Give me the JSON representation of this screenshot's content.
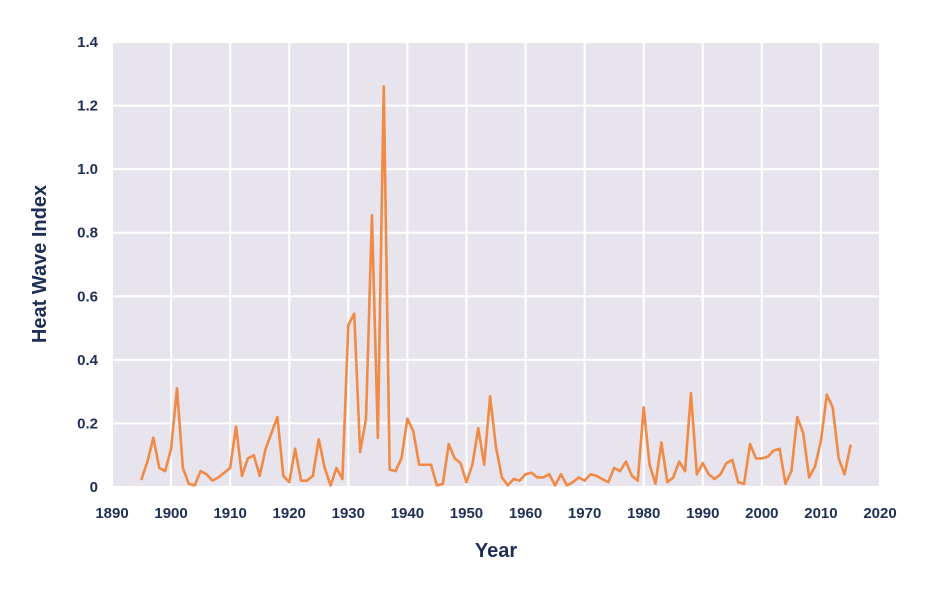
{
  "chart_data": {
    "type": "line",
    "xlabel": "Year",
    "ylabel": "Heat Wave Index",
    "xlim": [
      1890,
      2020
    ],
    "ylim": [
      0,
      1.4
    ],
    "xticks": [
      "1890",
      "1900",
      "1910",
      "1920",
      "1930",
      "1940",
      "1950",
      "1960",
      "1970",
      "1980",
      "1990",
      "2000",
      "2010",
      "2020"
    ],
    "yticks": [
      "0",
      "0.2",
      "0.4",
      "0.6",
      "0.8",
      "1.0",
      "1.2",
      "1.4"
    ],
    "grid": true,
    "colors": {
      "line": "#f08a45",
      "plot_bg": "#e8e4ee",
      "grid": "#ffffff",
      "text": "#1e2f56"
    },
    "series": [
      {
        "x": [
          1895,
          1896,
          1897,
          1898,
          1899,
          1900,
          1901,
          1902,
          1903,
          1904,
          1905,
          1906,
          1907,
          1908,
          1909,
          1910,
          1911,
          1912,
          1913,
          1914,
          1915,
          1916,
          1917,
          1918,
          1919,
          1920,
          1921,
          1922,
          1923,
          1924,
          1925,
          1926,
          1927,
          1928,
          1929,
          1930,
          1931,
          1932,
          1933,
          1934,
          1935,
          1936,
          1937,
          1938,
          1939,
          1940,
          1941,
          1942,
          1943,
          1944,
          1945,
          1946,
          1947,
          1948,
          1949,
          1950,
          1951,
          1952,
          1953,
          1954,
          1955,
          1956,
          1957,
          1958,
          1959,
          1960,
          1961,
          1962,
          1963,
          1964,
          1965,
          1966,
          1967,
          1968,
          1969,
          1970,
          1971,
          1972,
          1973,
          1974,
          1975,
          1976,
          1977,
          1978,
          1979,
          1980,
          1981,
          1982,
          1983,
          1984,
          1985,
          1986,
          1987,
          1988,
          1989,
          1990,
          1991,
          1992,
          1993,
          1994,
          1995,
          1996,
          1997,
          1998,
          1999,
          2000,
          2001,
          2002,
          2003,
          2004,
          2005,
          2006,
          2007,
          2008,
          2009,
          2010,
          2011,
          2012,
          2013,
          2014,
          2015
        ],
        "values": [
          0.025,
          0.08,
          0.155,
          0.06,
          0.05,
          0.12,
          0.31,
          0.06,
          0.01,
          0.005,
          0.05,
          0.04,
          0.02,
          0.03,
          0.045,
          0.06,
          0.19,
          0.035,
          0.09,
          0.1,
          0.035,
          0.12,
          0.17,
          0.22,
          0.035,
          0.015,
          0.12,
          0.02,
          0.02,
          0.035,
          0.15,
          0.06,
          0.005,
          0.06,
          0.025,
          0.51,
          0.545,
          0.11,
          0.215,
          0.855,
          0.155,
          1.26,
          0.055,
          0.05,
          0.09,
          0.215,
          0.175,
          0.07,
          0.07,
          0.07,
          0.005,
          0.01,
          0.135,
          0.09,
          0.075,
          0.015,
          0.07,
          0.185,
          0.07,
          0.285,
          0.125,
          0.03,
          0.005,
          0.025,
          0.02,
          0.04,
          0.045,
          0.03,
          0.03,
          0.04,
          0.005,
          0.04,
          0.005,
          0.015,
          0.03,
          0.02,
          0.04,
          0.035,
          0.025,
          0.015,
          0.06,
          0.05,
          0.08,
          0.035,
          0.02,
          0.25,
          0.07,
          0.01,
          0.14,
          0.015,
          0.03,
          0.08,
          0.05,
          0.295,
          0.04,
          0.075,
          0.04,
          0.025,
          0.04,
          0.075,
          0.085,
          0.015,
          0.01,
          0.135,
          0.09,
          0.09,
          0.095,
          0.115,
          0.12,
          0.01,
          0.05,
          0.22,
          0.17,
          0.03,
          0.065,
          0.145,
          0.29,
          0.25,
          0.09,
          0.04,
          0.13
        ]
      }
    ]
  }
}
